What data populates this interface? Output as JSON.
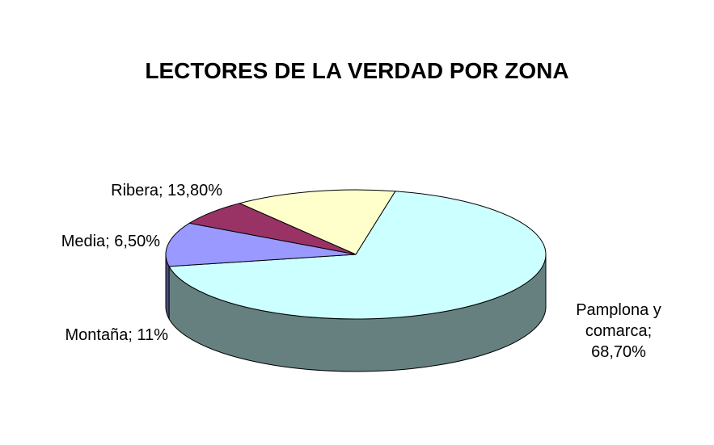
{
  "chart_data": {
    "type": "pie",
    "title": "LECTORES DE LA VERDAD POR ZONA",
    "three_d": true,
    "legend": "none",
    "slices": [
      {
        "name": "Pamplona y comarca",
        "value": 68.7,
        "label_lines": [
          "Pamplona y",
          "comarca;",
          "68,70%"
        ],
        "top_color": "#CCFFFF",
        "side_color": "#668080"
      },
      {
        "name": "Montaña",
        "value": 11,
        "label_lines": [
          "Montaña; 11%"
        ],
        "top_color": "#9999FF",
        "side_color": "#4D4D80"
      },
      {
        "name": "Media",
        "value": 6.5,
        "label_lines": [
          "Media; 6,50%"
        ],
        "top_color": "#993366",
        "side_color": "#4D1A33"
      },
      {
        "name": "Ribera",
        "value": 13.8,
        "label_lines": [
          "Ribera; 13,80%"
        ],
        "top_color": "#FFFFCC",
        "side_color": "#808066"
      }
    ]
  }
}
